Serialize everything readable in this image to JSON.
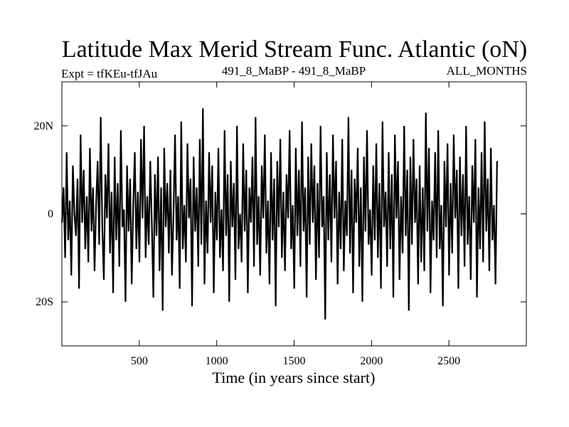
{
  "chart_data": {
    "type": "line",
    "title": "Latitude Max Merid Stream Func. Atlantic (oN)",
    "experiment_label": "Expt = tfKEu-tfJAu",
    "comparison_label": "491_8_MaBP - 491_8_MaBP",
    "period_label": "ALL_MONTHS",
    "xlabel": "Time (in years since start)",
    "ylabel": "",
    "xlim": [
      0,
      3000
    ],
    "ylim": [
      -30,
      30
    ],
    "x_ticks": [
      {
        "value": 500,
        "label": "500"
      },
      {
        "value": 1000,
        "label": "1000"
      },
      {
        "value": 1500,
        "label": "1500"
      },
      {
        "value": 2000,
        "label": "2000"
      },
      {
        "value": 2500,
        "label": "2500"
      }
    ],
    "y_ticks": [
      {
        "value": 20,
        "label": "20N"
      },
      {
        "value": 0,
        "label": "0"
      },
      {
        "value": -20,
        "label": "20S"
      }
    ],
    "grid": false,
    "legend": "none",
    "colors": {
      "line": "#000000",
      "axes": "#000000",
      "background": "#ffffff"
    },
    "series": [
      {
        "x_start": 1,
        "x_step": 10,
        "values": [
          -2,
          6,
          -10,
          14,
          -6,
          3,
          -14,
          11,
          0,
          -5,
          8,
          -17,
          18,
          -2,
          10,
          -8,
          4,
          -11,
          15,
          -4,
          6,
          -13,
          2,
          12,
          -7,
          22,
          -3,
          -15,
          9,
          -1,
          16,
          -9,
          5,
          -18,
          13,
          -6,
          7,
          -12,
          19,
          -3,
          1,
          -20,
          11,
          -4,
          8,
          -16,
          2,
          14,
          -8,
          5,
          -11,
          17,
          -1,
          20,
          -10,
          4,
          -7,
          12,
          -2,
          -19,
          9,
          -5,
          13,
          -13,
          6,
          -22,
          15,
          -3,
          7,
          -9,
          10,
          -14,
          0,
          18,
          -6,
          4,
          -17,
          21,
          -8,
          2,
          -11,
          16,
          -1,
          8,
          -21,
          13,
          -4,
          6,
          -12,
          17,
          -7,
          24,
          -16,
          3,
          -9,
          14,
          -2,
          11,
          -18,
          5,
          -6,
          15,
          -10,
          1,
          -13,
          19,
          -5,
          9,
          -20,
          12,
          -3,
          7,
          -15,
          20,
          -8,
          0,
          -11,
          16,
          -4,
          10,
          -18,
          6,
          -2,
          13,
          -12,
          22,
          -7,
          4,
          -14,
          11,
          -1,
          18,
          -9,
          3,
          -16,
          14,
          -6,
          8,
          -21,
          12,
          -3,
          17,
          -10,
          5,
          -13,
          9,
          -1,
          19,
          -8,
          2,
          -17,
          15,
          -5,
          10,
          -12,
          21,
          -4,
          6,
          -19,
          13,
          -7,
          16,
          -2,
          11,
          -15,
          7,
          -10,
          20,
          -3,
          4,
          -24,
          14,
          -6,
          9,
          -11,
          18,
          -1,
          12,
          -16,
          5,
          -8,
          17,
          -13,
          3,
          -5,
          22,
          -9,
          10,
          -18,
          8,
          -2,
          15,
          -12,
          6,
          -20,
          13,
          -4,
          19,
          -7,
          1,
          -14,
          11,
          -6,
          16,
          -10,
          7,
          -17,
          21,
          -3,
          5,
          -12,
          14,
          -8,
          9,
          -19,
          18,
          -1,
          12,
          -15,
          4,
          -9,
          20,
          -5,
          10,
          -22,
          13,
          -7,
          17,
          -2,
          8,
          -16,
          11,
          -11,
          6,
          -13,
          23,
          -4,
          15,
          -18,
          3,
          -6,
          14,
          -10,
          19,
          -8,
          2,
          -21,
          12,
          -3,
          16,
          -14,
          7,
          -9,
          18,
          -1,
          10,
          -17,
          13,
          -5,
          9,
          -12,
          20,
          -7,
          4,
          -15,
          11,
          -2,
          17,
          -19,
          6,
          -8,
          14,
          -11,
          21,
          -4,
          8,
          -13,
          15,
          -6,
          2,
          -16,
          12
        ]
      }
    ]
  }
}
